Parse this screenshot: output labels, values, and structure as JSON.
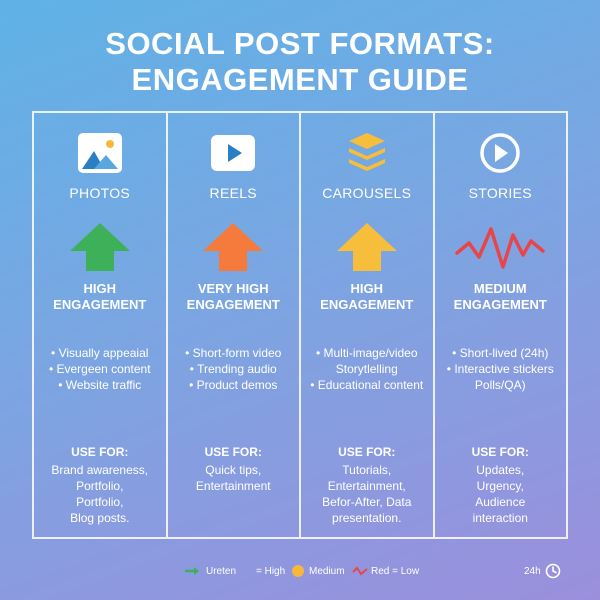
{
  "title_line1": "SOCIAL POST FORMATS:",
  "title_line2": "ENGAGEMENT GUIDE",
  "columns": [
    {
      "name": "PHOTOS",
      "icon": "image-icon",
      "arrow_color": "#3fb05a",
      "engagement": [
        "HIGH",
        "ENGAGEMENT"
      ],
      "features": [
        "• Visually appeaial",
        "• Evergeen content",
        "• Website traffic"
      ],
      "use_for_label": "USE FOR:",
      "use_for": [
        "Brand awareness,",
        "Portfolio,",
        "Portfolio,",
        "Blog posts."
      ]
    },
    {
      "name": "REELS",
      "icon": "play-icon",
      "arrow_color": "#f47b3c",
      "engagement": [
        "VERY HIGH",
        "ENGAGEMENT"
      ],
      "features": [
        "• Short-form video",
        "• Trending audio",
        "• Product demos"
      ],
      "use_for_label": "USE FOR:",
      "use_for": [
        "Quick tips,",
        "Entertainment"
      ]
    },
    {
      "name": "CAROUSELS",
      "icon": "stack-icon",
      "arrow_color": "#f6be3a",
      "engagement": [
        "HIGH",
        "ENGAGEMENT"
      ],
      "features": [
        "• Multi-image/video",
        "Storytlelling",
        "• Educational content"
      ],
      "use_for_label": "USE FOR:",
      "use_for": [
        "Tutorials,",
        "Entertainment,",
        "Befor-After, Data",
        "presentation."
      ]
    },
    {
      "name": "STORIES",
      "icon": "play-circle-icon",
      "arrow_color": "#e8454a",
      "engagement": [
        "MEDIUM",
        "ENGAGEMENT"
      ],
      "features": [
        "• Short-lived (24h)",
        "• Interactive stickers",
        "Polls/QA)"
      ],
      "use_for_label": "USE FOR:",
      "use_for": [
        "Updates,",
        "Urgency,",
        "Audience",
        "interaction"
      ]
    }
  ],
  "legend": {
    "item1": "Ureten",
    "item2": "= High",
    "item3": "Medium",
    "item4": "Red = Low",
    "timer": "24h"
  }
}
